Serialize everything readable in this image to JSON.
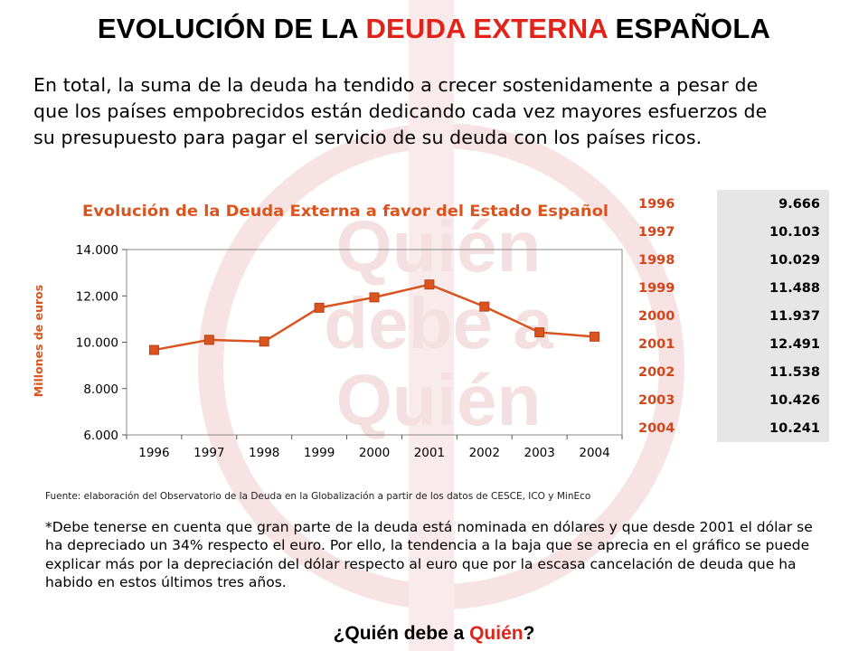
{
  "header": {
    "title_part1": "EVOLUCIÓN DE LA ",
    "title_red": "DEUDA EXTERNA",
    "title_part2": " ESPAÑOLA"
  },
  "intro": "En total, la suma de la deuda ha tendido a crecer sostenidamente a pesar de que los países empobrecidos están dedicando cada vez mayores esfuerzos de su presupuesto para pagar el servicio de su deuda con los países ricos.",
  "watermark": {
    "line1": "Quién",
    "line2": "debe a",
    "line3": "Quién"
  },
  "chart_data": {
    "type": "line",
    "title": "Evolución de la Deuda Externa a favor del Estado Español",
    "xlabel": "",
    "ylabel": "Millones de euros",
    "categories": [
      "1996",
      "1997",
      "1998",
      "1999",
      "2000",
      "2001",
      "2002",
      "2003",
      "2004"
    ],
    "values": [
      9666,
      10103,
      10029,
      11488,
      11937,
      12491,
      11538,
      10426,
      10241
    ],
    "ylim": [
      6000,
      14000
    ],
    "yticks": [
      6000,
      8000,
      10000,
      12000,
      14000
    ],
    "ytick_labels": [
      "6.000",
      "8.000",
      "10.000",
      "12.000",
      "14.000"
    ],
    "grid": false,
    "legend": "none",
    "series_color": "#d9541e",
    "title_color": "#d9541e"
  },
  "table": {
    "rows": [
      {
        "year": "1996",
        "value": "9.666"
      },
      {
        "year": "1997",
        "value": "10.103"
      },
      {
        "year": "1998",
        "value": "10.029"
      },
      {
        "year": "1999",
        "value": "11.488"
      },
      {
        "year": "2000",
        "value": "11.937"
      },
      {
        "year": "2001",
        "value": "12.491"
      },
      {
        "year": "2002",
        "value": "11.538"
      },
      {
        "year": "2003",
        "value": "10.426"
      },
      {
        "year": "2004",
        "value": "10.241"
      }
    ]
  },
  "source": "Fuente: elaboración del Observatorio de la Deuda en la Globalización  a partir de los datos de CESCE, ICO y MinEco",
  "note": "*Debe tenerse en cuenta que gran parte de la deuda está nominada en dólares y que desde 2001 el dólar se ha depreciado un 34% respecto el euro. Por ello, la tendencia a la baja que se aprecia en el gráfico se puede explicar más por la depreciación del dólar respecto al euro que por la escasa cancelación de deuda que ha habido en estos últimos tres años.",
  "footer": {
    "part1": "¿Quién debe a ",
    "part_red": "Quién",
    "part2": "?"
  }
}
